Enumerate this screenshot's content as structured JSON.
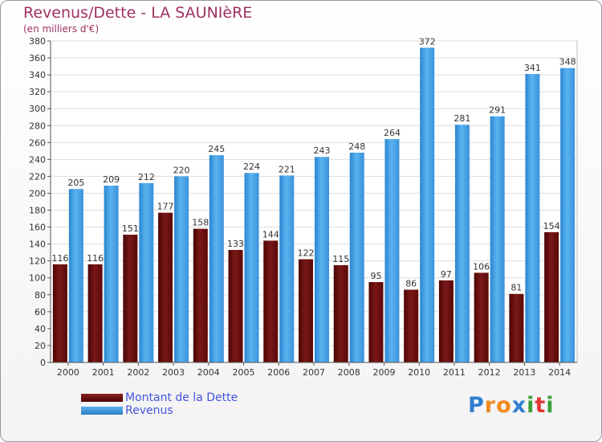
{
  "title": "Revenus/Dette - LA SAUNIèRE",
  "subtitle": "(en milliers d'€)",
  "logo_text": "Proxiti",
  "colors": {
    "debt": "#6b0d0d",
    "revenue": "#3d9be4",
    "title": "#a03060",
    "legend_text": "#4455dd"
  },
  "legend": {
    "debt_label": "Montant de la Dette",
    "revenue_label": "Revenus"
  },
  "chart_data": {
    "type": "bar",
    "title": "Revenus/Dette - LA SAUNIèRE",
    "subtitle": "(en milliers d'€)",
    "categories": [
      "2000",
      "2001",
      "2002",
      "2003",
      "2004",
      "2005",
      "2006",
      "2007",
      "2008",
      "2009",
      "2010",
      "2011",
      "2012",
      "2013",
      "2014"
    ],
    "series": [
      {
        "name": "Montant de la Dette",
        "values": [
          116,
          116,
          151,
          177,
          158,
          133,
          144,
          122,
          115,
          95,
          86,
          97,
          106,
          81,
          154
        ]
      },
      {
        "name": "Revenus",
        "values": [
          205,
          209,
          212,
          220,
          245,
          224,
          221,
          243,
          248,
          264,
          372,
          281,
          291,
          341,
          348
        ]
      }
    ],
    "ylim": [
      0,
      380
    ],
    "ytick_step": 20,
    "grid": true,
    "legend_position": "bottom-left"
  }
}
